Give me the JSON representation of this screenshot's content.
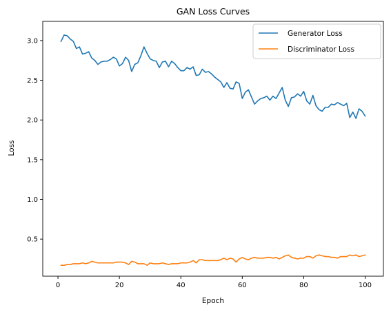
{
  "chart_data": {
    "type": "line",
    "title": "GAN Loss Curves",
    "xlabel": "Epoch",
    "ylabel": "Loss",
    "xlim": [
      -4.95,
      105.95
    ],
    "ylim": [
      0.033,
      3.242
    ],
    "xticks": [
      0,
      20,
      40,
      60,
      80,
      100
    ],
    "yticks": [
      0.5,
      1.0,
      1.5,
      2.0,
      2.5,
      3.0
    ],
    "xtick_labels": [
      "0",
      "20",
      "40",
      "60",
      "80",
      "100"
    ],
    "ytick_labels": [
      "0.5",
      "1.0",
      "1.5",
      "2.0",
      "2.5",
      "3.0"
    ],
    "legend_position": "top-right",
    "grid": false,
    "x": [
      1,
      2,
      3,
      4,
      5,
      6,
      7,
      8,
      9,
      10,
      11,
      12,
      13,
      14,
      15,
      16,
      17,
      18,
      19,
      20,
      21,
      22,
      23,
      24,
      25,
      26,
      27,
      28,
      29,
      30,
      31,
      32,
      33,
      34,
      35,
      36,
      37,
      38,
      39,
      40,
      41,
      42,
      43,
      44,
      45,
      46,
      47,
      48,
      49,
      50,
      51,
      52,
      53,
      54,
      55,
      56,
      57,
      58,
      59,
      60,
      61,
      62,
      63,
      64,
      65,
      66,
      67,
      68,
      69,
      70,
      71,
      72,
      73,
      74,
      75,
      76,
      77,
      78,
      79,
      80,
      81,
      82,
      83,
      84,
      85,
      86,
      87,
      88,
      89,
      90,
      91,
      92,
      93,
      94,
      95,
      96,
      97,
      98,
      99,
      100
    ],
    "series": [
      {
        "name": "Generator Loss",
        "color": "#1f77b4",
        "values": [
          2.99,
          3.07,
          3.06,
          3.02,
          2.99,
          2.9,
          2.92,
          2.83,
          2.84,
          2.86,
          2.78,
          2.75,
          2.7,
          2.73,
          2.74,
          2.74,
          2.76,
          2.79,
          2.77,
          2.68,
          2.71,
          2.79,
          2.75,
          2.61,
          2.7,
          2.72,
          2.81,
          2.92,
          2.84,
          2.77,
          2.75,
          2.74,
          2.66,
          2.73,
          2.74,
          2.67,
          2.74,
          2.71,
          2.66,
          2.62,
          2.62,
          2.66,
          2.64,
          2.67,
          2.56,
          2.57,
          2.64,
          2.6,
          2.61,
          2.58,
          2.54,
          2.51,
          2.48,
          2.41,
          2.47,
          2.4,
          2.39,
          2.48,
          2.46,
          2.27,
          2.35,
          2.38,
          2.29,
          2.2,
          2.24,
          2.27,
          2.28,
          2.3,
          2.25,
          2.3,
          2.27,
          2.34,
          2.41,
          2.25,
          2.17,
          2.28,
          2.29,
          2.33,
          2.3,
          2.36,
          2.24,
          2.2,
          2.31,
          2.18,
          2.13,
          2.11,
          2.16,
          2.16,
          2.2,
          2.19,
          2.22,
          2.2,
          2.18,
          2.21,
          2.03,
          2.1,
          2.02,
          2.14,
          2.11,
          2.05
        ]
      },
      {
        "name": "Discriminator Loss",
        "color": "#ff7f0e",
        "values": [
          0.17,
          0.17,
          0.18,
          0.18,
          0.19,
          0.19,
          0.19,
          0.2,
          0.19,
          0.2,
          0.22,
          0.21,
          0.2,
          0.2,
          0.2,
          0.2,
          0.2,
          0.2,
          0.21,
          0.21,
          0.21,
          0.2,
          0.18,
          0.22,
          0.21,
          0.19,
          0.19,
          0.19,
          0.17,
          0.2,
          0.19,
          0.19,
          0.19,
          0.2,
          0.19,
          0.18,
          0.19,
          0.19,
          0.19,
          0.2,
          0.2,
          0.2,
          0.21,
          0.23,
          0.2,
          0.24,
          0.24,
          0.23,
          0.23,
          0.23,
          0.23,
          0.23,
          0.24,
          0.26,
          0.24,
          0.26,
          0.25,
          0.21,
          0.25,
          0.27,
          0.25,
          0.24,
          0.26,
          0.27,
          0.26,
          0.26,
          0.26,
          0.27,
          0.27,
          0.26,
          0.27,
          0.25,
          0.27,
          0.29,
          0.3,
          0.27,
          0.26,
          0.25,
          0.26,
          0.26,
          0.28,
          0.28,
          0.26,
          0.29,
          0.3,
          0.29,
          0.28,
          0.28,
          0.27,
          0.27,
          0.26,
          0.28,
          0.28,
          0.28,
          0.3,
          0.29,
          0.3,
          0.28,
          0.29,
          0.3
        ]
      }
    ]
  }
}
